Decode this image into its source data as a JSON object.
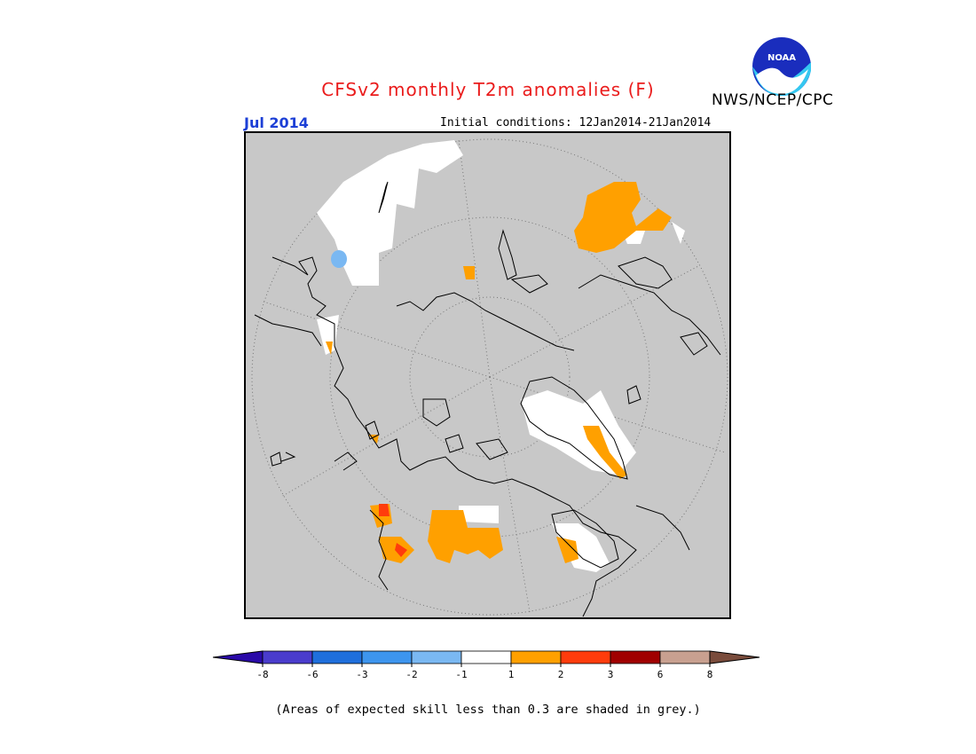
{
  "header": {
    "title": "CFSv2 monthly T2m anomalies (F)",
    "agency": "NWS/NCEP/CPC",
    "logo_text": "NOAA",
    "month": "Jul 2014",
    "initial_conditions": "Initial conditions: 12Jan2014-21Jan2014"
  },
  "colorbar": {
    "labels": [
      "-8",
      "-6",
      "-3",
      "-2",
      "-1",
      "1",
      "2",
      "3",
      "6",
      "8"
    ],
    "colors": [
      "#2a0aa8",
      "#4a3ccc",
      "#1f6fdc",
      "#3d95ee",
      "#7ab8f2",
      "#ffffff",
      "#ffa000",
      "#ff3c0c",
      "#a00000",
      "#c8a090",
      "#7a4c3c"
    ]
  },
  "footer": {
    "note": "(Areas of expected skill less than 0.3 are shaded in grey.)"
  },
  "map": {
    "background_color": "#c8c8c8",
    "land_outline_color": "#000000"
  }
}
